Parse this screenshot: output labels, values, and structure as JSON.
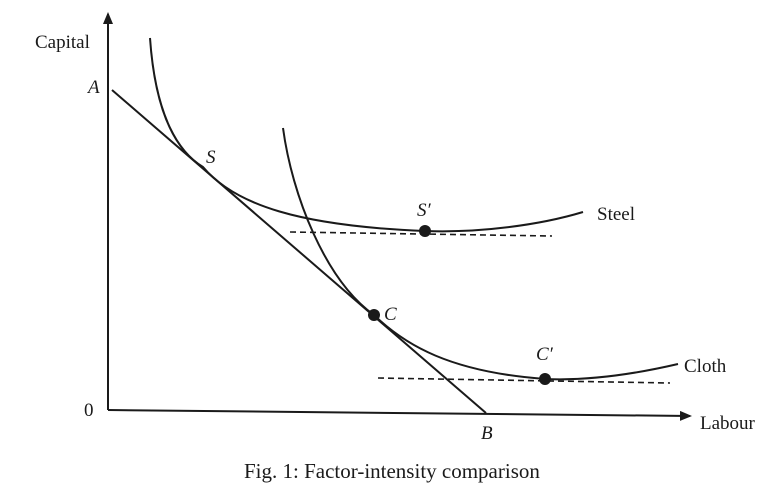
{
  "axes": {
    "y_label": "Capital",
    "x_label": "Labour",
    "origin_label": "0"
  },
  "points": {
    "a": "A",
    "b": "B",
    "s": "S",
    "c": "C",
    "s_prime": "S′",
    "c_prime": "C′"
  },
  "curves": {
    "steel": "Steel",
    "cloth": "Cloth"
  },
  "caption": "Fig. 1: Factor-intensity comparison"
}
